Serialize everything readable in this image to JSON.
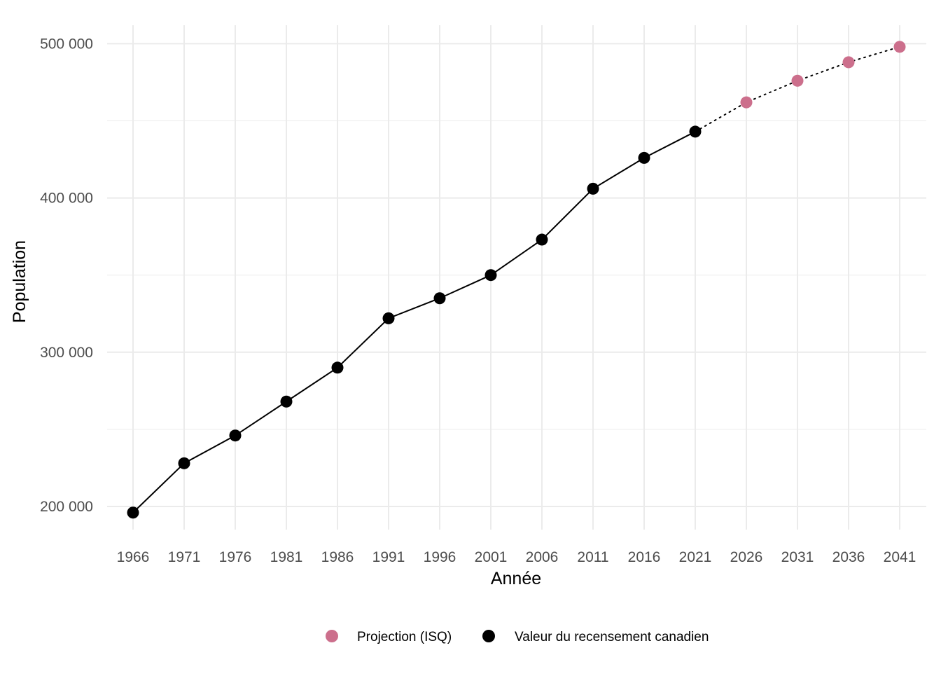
{
  "chart_data": {
    "type": "line",
    "title": "",
    "xlabel": "Année",
    "ylabel": "Population",
    "ylim": [
      185000,
      512000
    ],
    "y_ticks": [
      200000,
      300000,
      400000,
      500000
    ],
    "y_tick_labels": [
      "200 000",
      "300 000",
      "400 000",
      "500 000"
    ],
    "x_ticks": [
      1966,
      1971,
      1976,
      1981,
      1986,
      1991,
      1996,
      2001,
      2006,
      2011,
      2016,
      2021,
      2026,
      2031,
      2036,
      2041
    ],
    "grid": true,
    "legend_position": "bottom",
    "series": [
      {
        "name": "Valeur du recensement canadien",
        "color": "#000000",
        "line_style": "solid",
        "x": [
          1966,
          1971,
          1976,
          1981,
          1986,
          1991,
          1996,
          2001,
          2006,
          2011,
          2016,
          2021
        ],
        "values": [
          196000,
          228000,
          246000,
          268000,
          290000,
          322000,
          335000,
          350000,
          373000,
          406000,
          426000,
          443000
        ]
      },
      {
        "name": "Projection (ISQ)",
        "color": "#cc6f8c",
        "line_style": "dotted",
        "x": [
          2026,
          2031,
          2036,
          2041
        ],
        "values": [
          462000,
          476000,
          488000,
          498000
        ]
      }
    ],
    "legend": [
      {
        "label": "Projection (ISQ)",
        "color": "#cc6f8c"
      },
      {
        "label": "Valeur du recensement canadien",
        "color": "#000000"
      }
    ]
  }
}
